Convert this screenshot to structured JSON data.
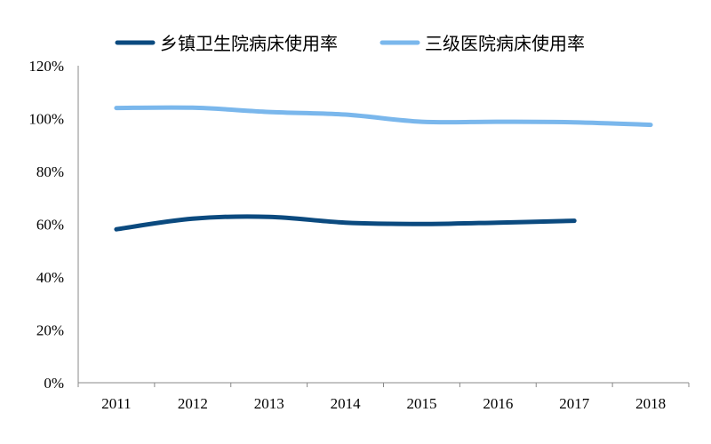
{
  "chart_data": {
    "type": "line",
    "title": "",
    "xlabel": "",
    "ylabel": "",
    "categories": [
      "2011",
      "2012",
      "2013",
      "2014",
      "2015",
      "2016",
      "2017",
      "2018"
    ],
    "y_ticks": [
      "0%",
      "20%",
      "40%",
      "60%",
      "80%",
      "100%",
      "120%"
    ],
    "ylim": [
      0,
      120
    ],
    "grid": false,
    "legend_position": "top",
    "series": [
      {
        "name": "乡镇卫生院病床使用率",
        "color": "#0b4a7f",
        "values": [
          58.1,
          62.1,
          62.8,
          60.6,
          60.1,
          60.6,
          61.3,
          null
        ]
      },
      {
        "name": "三级医院病床使用率",
        "color": "#7ab7ec",
        "values": [
          104.0,
          104.1,
          102.5,
          101.5,
          98.8,
          98.8,
          98.6,
          97.6
        ]
      }
    ]
  }
}
